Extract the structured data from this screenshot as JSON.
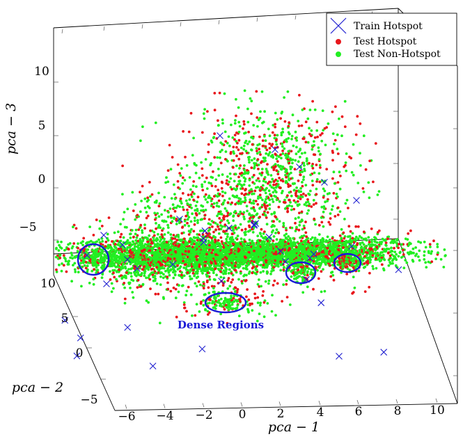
{
  "chart_data": {
    "type": "scatter",
    "projection": "3d",
    "xlabel": "pca − 1",
    "ylabel": "pca − 2",
    "zlabel": "pca − 3",
    "x_ticks": [
      "−6",
      "−4",
      "−2",
      "0",
      "2",
      "4",
      "6",
      "8",
      "10"
    ],
    "x_tick_values": [
      -6,
      -4,
      -2,
      0,
      2,
      4,
      6,
      8,
      10
    ],
    "y_ticks": [
      "−5",
      "0",
      "5",
      "10"
    ],
    "y_tick_values": [
      -5,
      0,
      5,
      10
    ],
    "z_ticks": [
      "−5",
      "0",
      "5",
      "10"
    ],
    "z_tick_values": [
      -5,
      0,
      5,
      10
    ],
    "xlim": [
      -6.5,
      11
    ],
    "ylim": [
      -6,
      12
    ],
    "zlim": [
      -7,
      14
    ],
    "legend_position": "top-right",
    "series": [
      {
        "name": "Train Hotspot",
        "marker": "x",
        "color": "#1f1fd0",
        "points": [
          [
            -6,
            10,
            -7
          ],
          [
            -5.5,
            9,
            -8
          ],
          [
            -6,
            8,
            -9
          ],
          [
            -4,
            6,
            -5
          ],
          [
            6,
            3,
            -6
          ],
          [
            10,
            6,
            0
          ],
          [
            2,
            4,
            6
          ],
          [
            0,
            2,
            7
          ],
          [
            3,
            5,
            4
          ],
          [
            -1,
            3,
            5
          ],
          [
            5,
            4,
            3
          ],
          [
            4,
            2,
            2
          ],
          [
            1,
            1,
            8
          ],
          [
            6,
            6,
            -3
          ],
          [
            -3,
            5,
            -8
          ],
          [
            8,
            2,
            -5
          ],
          [
            -2,
            0,
            -3
          ],
          [
            0,
            6,
            4
          ]
        ]
      },
      {
        "name": "Test Hotspot",
        "marker": "circle",
        "color": "#e8161b",
        "points": [
          [
            -2,
            3,
            -6
          ],
          [
            0,
            2,
            -6
          ],
          [
            2,
            1,
            -6
          ],
          [
            4,
            3,
            -6
          ],
          [
            1,
            4,
            3
          ],
          [
            3,
            3,
            4
          ],
          [
            2,
            2,
            7
          ],
          [
            5,
            2,
            -6
          ],
          [
            6,
            4,
            -7
          ],
          [
            -1,
            1,
            -6
          ],
          [
            3,
            0,
            -3
          ],
          [
            0,
            5,
            5
          ],
          [
            7,
            3,
            -6
          ],
          [
            -3,
            2,
            -7
          ],
          [
            4,
            5,
            2
          ]
        ]
      },
      {
        "name": "Test Non-Hotspot",
        "marker": "circle",
        "color": "#22ee22",
        "points": [
          [
            -2,
            3,
            -6
          ],
          [
            0,
            2,
            -6
          ],
          [
            2,
            2,
            -6
          ],
          [
            4,
            3,
            -6
          ],
          [
            1,
            4,
            3
          ],
          [
            3,
            3,
            4
          ],
          [
            -5,
            9,
            -7
          ],
          [
            6,
            4,
            -7
          ],
          [
            3,
            1,
            -8
          ],
          [
            0,
            3,
            2
          ],
          [
            2,
            5,
            3
          ],
          [
            -4,
            6,
            -6
          ],
          [
            5,
            3,
            -5
          ],
          [
            1,
            1,
            -7
          ],
          [
            -1,
            4,
            -6
          ]
        ]
      }
    ],
    "annotations": [
      {
        "text": "Dense Regions"
      }
    ]
  }
}
